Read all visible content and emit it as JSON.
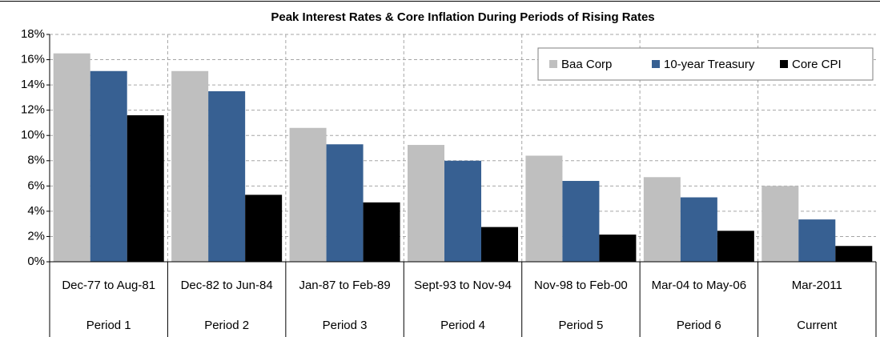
{
  "chart_data": {
    "type": "bar",
    "title": "Peak Interest Rates & Core Inflation During Periods of Rising Rates",
    "categories": [
      "Dec-77 to Aug-81",
      "Dec-82 to Jun-84",
      "Jan-87 to Feb-89",
      "Sept-93 to Nov-94",
      "Nov-98 to Feb-00",
      "Mar-04 to May-06",
      "Mar-2011"
    ],
    "periods": [
      "Period 1",
      "Period 2",
      "Period 3",
      "Period 4",
      "Period 5",
      "Period 6",
      "Current"
    ],
    "series": [
      {
        "name": "Baa Corp",
        "color": "#bfbfbf",
        "values": [
          16.5,
          15.1,
          10.6,
          9.25,
          8.4,
          6.7,
          6.0
        ]
      },
      {
        "name": "10-year Treasury",
        "color": "#376092",
        "values": [
          15.1,
          13.5,
          9.3,
          8.0,
          6.4,
          5.1,
          3.35
        ]
      },
      {
        "name": "Core CPI",
        "color": "#000000",
        "values": [
          11.6,
          5.3,
          4.7,
          2.75,
          2.15,
          2.45,
          1.25
        ]
      }
    ],
    "ylim": [
      0,
      18
    ],
    "yticks": [
      {
        "value": 0,
        "label": "0%"
      },
      {
        "value": 2,
        "label": "2%"
      },
      {
        "value": 4,
        "label": "4%"
      },
      {
        "value": 6,
        "label": "6%"
      },
      {
        "value": 8,
        "label": "8%"
      },
      {
        "value": 10,
        "label": "10%"
      },
      {
        "value": 12,
        "label": "12%"
      },
      {
        "value": 14,
        "label": "14%"
      },
      {
        "value": 16,
        "label": "16%"
      },
      {
        "value": 18,
        "label": "18%"
      }
    ],
    "grid": true,
    "legend": "upper right"
  }
}
